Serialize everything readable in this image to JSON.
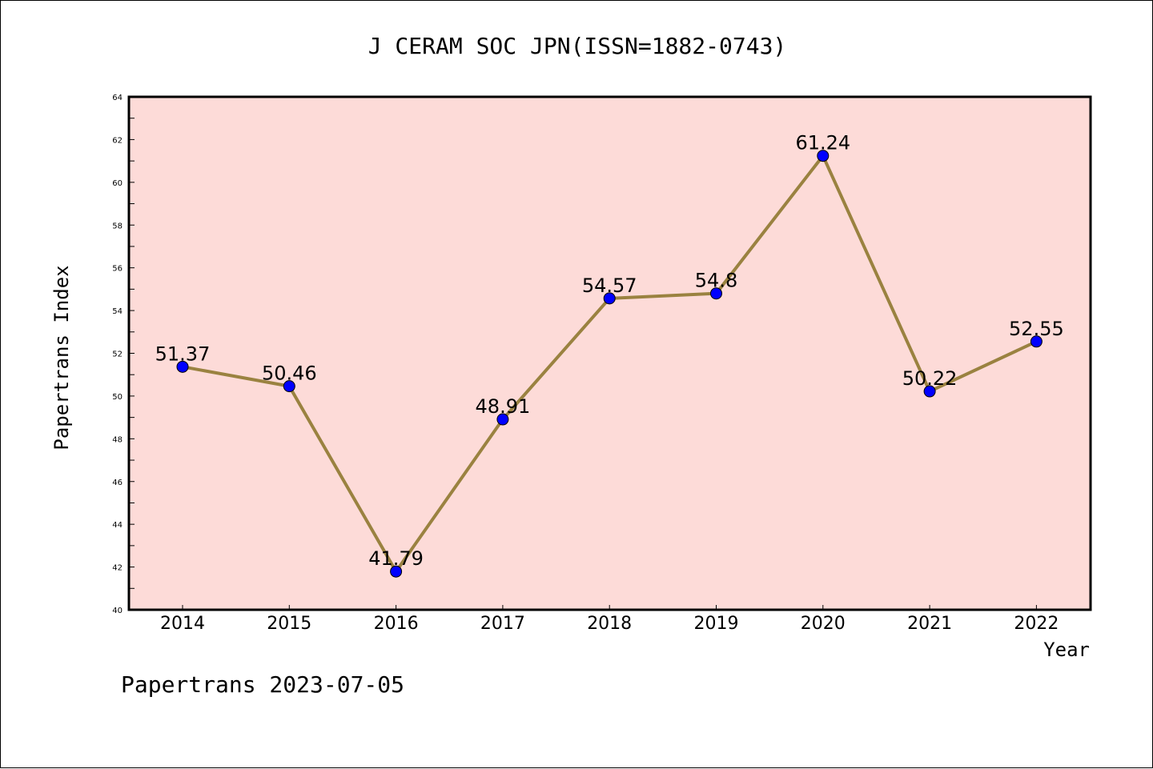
{
  "chart_data": {
    "type": "line",
    "title": "J CERAM SOC JPN(ISSN=1882-0743)",
    "xlabel": "Year",
    "ylabel": "Papertrans Index",
    "categories": [
      "2014",
      "2015",
      "2016",
      "2017",
      "2018",
      "2019",
      "2020",
      "2021",
      "2022"
    ],
    "series": [
      {
        "values": [
          51.37,
          50.46,
          41.79,
          48.91,
          54.57,
          54.8,
          61.24,
          50.22,
          52.55
        ],
        "labels": [
          "51.37",
          "50.46",
          "41.79",
          "48.91",
          "54.57",
          "54.8",
          "61.24",
          "50.22",
          "52.55"
        ]
      }
    ],
    "yticks": [
      "40",
      "42",
      "44",
      "46",
      "48",
      "50",
      "52",
      "54",
      "56",
      "58",
      "60",
      "62",
      "64"
    ],
    "ylim": [
      40,
      64
    ],
    "grid": false,
    "colors": {
      "plot_background": "#fddbd8",
      "line": "#9a8240",
      "marker": "#0000ff"
    }
  },
  "footer": "Papertrans 2023-07-05"
}
